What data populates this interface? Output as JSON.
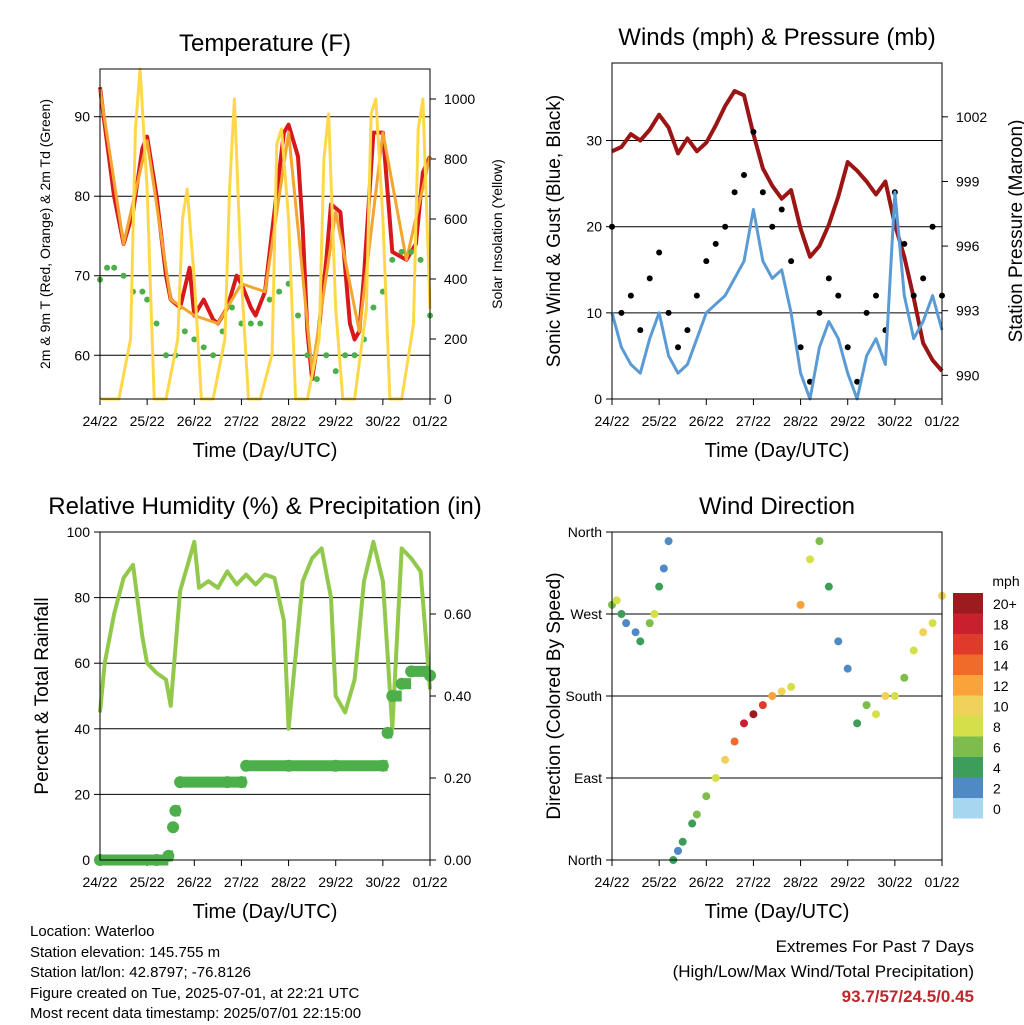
{
  "footer": {
    "location": "Location: Waterloo",
    "elevation": "Station elevation: 145.755 m",
    "latlon": "Station lat/lon: 42.8797; -76.8126",
    "created": "Figure created on Tue, 2025-07-01, at 22:21 UTC",
    "recent": "Most recent data timestamp: 2025/07/01 22:15:00"
  },
  "extremes": {
    "title": "Extremes For Past 7 Days",
    "subtitle": "(High/Low/Max Wind/Total Precipitation)",
    "values": "93.7/57/24.5/0.45",
    "color": "#c0272d"
  },
  "chart_data": [
    {
      "id": "temperature",
      "type": "line",
      "title": "Temperature (F)",
      "xlabel": "Time (Day/UTC)",
      "ylabel": "2m & 9m T (Red, Orange) & 2m Td (Green)",
      "ylabel_right": "Solar Insolation (Yellow)",
      "x_ticks": [
        "24/22",
        "25/22",
        "26/22",
        "27/22",
        "28/22",
        "29/22",
        "30/22",
        "01/22"
      ],
      "xlim": [
        0,
        7
      ],
      "ylim": [
        54.5,
        96
      ],
      "y_ticks": [
        60,
        70,
        80,
        90
      ],
      "ylim_right": [
        0,
        1100
      ],
      "y_ticks_right": [
        0,
        200,
        400,
        600,
        800,
        1000
      ],
      "series": [
        {
          "color": "#d7191c",
          "kind": "line",
          "x": [
            0,
            0.1,
            0.3,
            0.5,
            0.7,
            0.9,
            1.0,
            1.2,
            1.4,
            1.5,
            1.7,
            1.9,
            2.0,
            2.2,
            2.4,
            2.5,
            2.7,
            2.9,
            3.0,
            3.2,
            3.3,
            3.5,
            3.7,
            3.9,
            4.0,
            4.2,
            4.3,
            4.4,
            4.5,
            4.6,
            4.8,
            4.9,
            5.1,
            5.3,
            5.4,
            5.5,
            5.6,
            5.8,
            6.0,
            6.2,
            6.5,
            6.7,
            6.85,
            7.0
          ],
          "values": [
            93.7,
            89,
            80,
            74,
            78,
            86,
            87.5,
            80,
            70,
            67,
            66,
            71,
            65,
            67,
            64.5,
            64,
            66,
            70,
            69,
            66,
            65,
            68,
            78,
            88,
            89,
            85,
            76,
            63,
            57,
            61,
            72,
            79,
            78,
            64,
            62,
            63,
            70,
            88,
            88,
            73,
            72,
            74,
            83,
            85
          ]
        },
        {
          "color": "#f4a431",
          "kind": "line",
          "x": [
            0,
            0.5,
            1.0,
            1.5,
            2.0,
            2.5,
            3.0,
            3.5,
            4.0,
            4.5,
            5.0,
            5.5,
            6.0,
            6.5,
            7.0
          ],
          "values": [
            93.5,
            74,
            87,
            67,
            65,
            64,
            69,
            68,
            88,
            58,
            78,
            63,
            88,
            72,
            85
          ]
        },
        {
          "color": "#4daf4a",
          "kind": "dots",
          "x": [
            0,
            0.15,
            0.3,
            0.5,
            0.7,
            0.9,
            1.0,
            1.2,
            1.4,
            1.6,
            1.8,
            2.0,
            2.2,
            2.4,
            2.6,
            2.8,
            3.0,
            3.2,
            3.4,
            3.6,
            3.8,
            4.0,
            4.2,
            4.4,
            4.6,
            4.8,
            5.0,
            5.2,
            5.4,
            5.6,
            5.8,
            6.0,
            6.2,
            6.4,
            6.6,
            6.8,
            7.0
          ],
          "values": [
            69.5,
            71,
            71,
            70,
            68,
            68,
            67,
            64,
            60,
            60,
            63,
            62,
            61,
            60,
            63,
            66,
            64,
            64,
            64,
            67,
            68,
            69,
            65,
            60,
            57,
            60,
            58,
            60,
            60,
            62,
            66,
            68,
            72,
            73,
            73,
            72,
            65
          ]
        },
        {
          "color": "#ffd84a",
          "kind": "line",
          "axis": "right",
          "x": [
            0,
            0.15,
            0.4,
            0.65,
            0.75,
            0.85,
            1.0,
            1.15,
            1.4,
            1.65,
            1.75,
            1.85,
            2.0,
            2.15,
            2.4,
            2.65,
            2.75,
            2.85,
            3.0,
            3.15,
            3.4,
            3.65,
            3.75,
            3.85,
            4.0,
            4.15,
            4.4,
            4.65,
            4.75,
            4.85,
            5.0,
            5.15,
            5.4,
            5.65,
            5.75,
            5.85,
            6.0,
            6.15,
            6.4,
            6.65,
            6.75,
            6.85,
            7.0
          ],
          "values": [
            0,
            0,
            0,
            200,
            900,
            1100,
            700,
            0,
            0,
            200,
            600,
            700,
            400,
            0,
            0,
            200,
            700,
            1000,
            400,
            0,
            0,
            150,
            850,
            900,
            600,
            0,
            0,
            200,
            800,
            950,
            300,
            0,
            0,
            300,
            950,
            1000,
            600,
            0,
            0,
            250,
            900,
            1000,
            300
          ]
        }
      ]
    },
    {
      "id": "winds",
      "type": "line",
      "title": "Winds (mph) & Pressure (mb)",
      "xlabel": "Time (Day/UTC)",
      "ylabel": "Sonic Wind & Gust (Blue, Black)",
      "ylabel_right": "Station Pressure (Maroon)",
      "x_ticks": [
        "24/22",
        "25/22",
        "26/22",
        "27/22",
        "28/22",
        "29/22",
        "30/22",
        "01/22"
      ],
      "xlim": [
        0,
        7
      ],
      "ylim": [
        0,
        39
      ],
      "y_ticks": [
        0,
        10,
        20,
        30
      ],
      "ylim_right": [
        988.9,
        1004.5
      ],
      "y_ticks_right": [
        990,
        993,
        996,
        999,
        1002
      ],
      "series": [
        {
          "color": "#9b1515",
          "kind": "line",
          "axis": "right",
          "x": [
            0,
            0.2,
            0.4,
            0.6,
            0.8,
            1.0,
            1.2,
            1.4,
            1.6,
            1.8,
            2.0,
            2.2,
            2.4,
            2.6,
            2.8,
            3.0,
            3.2,
            3.4,
            3.6,
            3.8,
            4.0,
            4.2,
            4.4,
            4.6,
            4.8,
            5.0,
            5.2,
            5.4,
            5.6,
            5.8,
            6.0,
            6.2,
            6.4,
            6.6,
            6.8,
            7.0
          ],
          "values": [
            1000.4,
            1000.6,
            1001.2,
            1000.9,
            1001.4,
            1002.1,
            1001.5,
            1000.3,
            1001.0,
            1000.4,
            1000.8,
            1001.6,
            1002.5,
            1003.2,
            1003.0,
            1001.2,
            999.6,
            998.8,
            998.2,
            998.6,
            996.8,
            995.5,
            996.0,
            997.0,
            998.3,
            999.9,
            999.5,
            999.0,
            998.4,
            999.0,
            997.0,
            995.5,
            993.6,
            991.5,
            990.7,
            990.2
          ]
        },
        {
          "color": "#000000",
          "kind": "dots",
          "x": [
            0,
            0.2,
            0.4,
            0.6,
            0.8,
            1.0,
            1.2,
            1.4,
            1.6,
            1.8,
            2.0,
            2.2,
            2.4,
            2.6,
            2.8,
            3.0,
            3.2,
            3.4,
            3.6,
            3.8,
            4.0,
            4.2,
            4.4,
            4.6,
            4.8,
            5.0,
            5.2,
            5.4,
            5.6,
            5.8,
            6.0,
            6.2,
            6.4,
            6.6,
            6.8,
            7.0
          ],
          "values": [
            20,
            10,
            12,
            8,
            14,
            17,
            10,
            6,
            8,
            12,
            16,
            18,
            20,
            24,
            26,
            31,
            24,
            20,
            22,
            16,
            6,
            2,
            10,
            14,
            12,
            6,
            2,
            10,
            12,
            8,
            24,
            18,
            12,
            14,
            20,
            12
          ]
        },
        {
          "color": "#5b9bd5",
          "kind": "line",
          "x": [
            0,
            0.2,
            0.4,
            0.6,
            0.8,
            1.0,
            1.2,
            1.4,
            1.6,
            1.8,
            2.0,
            2.2,
            2.4,
            2.6,
            2.8,
            3.0,
            3.2,
            3.4,
            3.6,
            3.8,
            4.0,
            4.2,
            4.4,
            4.6,
            4.8,
            5.0,
            5.2,
            5.4,
            5.6,
            5.8,
            6.0,
            6.2,
            6.4,
            6.6,
            6.8,
            7.0
          ],
          "values": [
            10,
            6,
            4,
            3,
            7,
            10,
            5,
            3,
            4,
            7,
            10,
            11,
            12,
            14,
            16,
            22,
            16,
            14,
            15,
            10,
            3,
            0,
            6,
            9,
            7,
            3,
            0,
            5,
            7,
            4,
            24,
            12,
            7,
            9,
            12,
            8
          ]
        }
      ]
    },
    {
      "id": "humidity",
      "type": "line",
      "title": "Relative Humidity (%) & Precipitation (in)",
      "xlabel": "Time (Day/UTC)",
      "ylabel": "Percent & Total Rainfall",
      "x_ticks": [
        "24/22",
        "25/22",
        "26/22",
        "27/22",
        "28/22",
        "29/22",
        "30/22",
        "01/22"
      ],
      "xlim": [
        0,
        7
      ],
      "ylim": [
        0,
        100
      ],
      "y_ticks": [
        0,
        20,
        40,
        60,
        80,
        100
      ],
      "ylim_right": [
        0,
        0.8
      ],
      "y_ticks_right": [
        "0.00",
        "0.20",
        "0.40",
        "0.60"
      ],
      "series": [
        {
          "color": "#92c84c",
          "kind": "line",
          "x": [
            0,
            0.1,
            0.3,
            0.5,
            0.7,
            0.9,
            1.0,
            1.2,
            1.4,
            1.5,
            1.7,
            1.9,
            2.0,
            2.1,
            2.3,
            2.5,
            2.7,
            2.9,
            3.1,
            3.3,
            3.5,
            3.7,
            3.9,
            4.0,
            4.2,
            4.3,
            4.5,
            4.7,
            4.9,
            5.0,
            5.2,
            5.4,
            5.6,
            5.8,
            6.0,
            6.2,
            6.4,
            6.6,
            6.8,
            7.0
          ],
          "values": [
            45,
            60,
            75,
            86,
            90,
            68,
            60,
            57,
            55,
            47,
            82,
            92,
            97,
            83,
            85,
            83,
            88,
            84,
            87,
            84,
            87,
            86,
            73,
            40,
            70,
            85,
            92,
            95,
            80,
            50,
            45,
            55,
            85,
            97,
            85,
            40,
            95,
            92,
            88,
            52
          ]
        },
        {
          "color": "#4daf4a",
          "kind": "steps",
          "axis": "right",
          "x": [
            0,
            1.2,
            1.45,
            1.55,
            1.6,
            1.7,
            2.7,
            3.0,
            3.1,
            4.0,
            5.0,
            6.0,
            6.1,
            6.2,
            6.4,
            6.6,
            7.0
          ],
          "values": [
            0,
            0,
            0.01,
            0.08,
            0.12,
            0.19,
            0.19,
            0.19,
            0.23,
            0.23,
            0.23,
            0.23,
            0.31,
            0.4,
            0.43,
            0.46,
            0.45
          ]
        }
      ]
    },
    {
      "id": "wind_direction",
      "type": "scatter",
      "title": "Wind Direction",
      "xlabel": "Time (Day/UTC)",
      "ylabel": "Direction (Colored By Speed)",
      "x_ticks": [
        "24/22",
        "25/22",
        "26/22",
        "27/22",
        "28/22",
        "29/22",
        "30/22",
        "01/22"
      ],
      "xlim": [
        0,
        7
      ],
      "ylim": [
        0,
        360
      ],
      "y_ticks": [
        "North",
        "East",
        "South",
        "West",
        "North"
      ],
      "legend": {
        "title": "mph",
        "labels": [
          "20+",
          "18",
          "16",
          "14",
          "12",
          "10",
          "8",
          "6",
          "4",
          "2",
          "0"
        ],
        "colors": [
          "#9b1b1e",
          "#c8202d",
          "#e03b2a",
          "#f06a29",
          "#f9a33a",
          "#f0d15a",
          "#d5df4a",
          "#7dbd4d",
          "#3d9e5b",
          "#4f8ac4",
          "#a7d7f0"
        ]
      },
      "x": [
        0,
        0.1,
        0.2,
        0.3,
        0.5,
        0.6,
        0.8,
        0.9,
        1.0,
        1.1,
        1.2,
        1.3,
        1.4,
        1.5,
        1.7,
        1.8,
        2.0,
        2.2,
        2.4,
        2.6,
        2.8,
        3.0,
        3.2,
        3.4,
        3.6,
        3.8,
        4.0,
        4.2,
        4.4,
        4.6,
        4.8,
        5.0,
        5.2,
        5.4,
        5.6,
        5.8,
        6.0,
        6.2,
        6.4,
        6.6,
        6.8,
        7.0
      ],
      "values": [
        280,
        285,
        270,
        260,
        250,
        240,
        260,
        270,
        300,
        320,
        350,
        0,
        10,
        20,
        40,
        50,
        70,
        90,
        110,
        130,
        150,
        160,
        170,
        180,
        185,
        190,
        280,
        330,
        350,
        300,
        240,
        210,
        150,
        170,
        160,
        180,
        180,
        200,
        230,
        250,
        260,
        290
      ],
      "speeds": [
        6,
        8,
        4,
        3,
        2,
        4,
        6,
        8,
        5,
        3,
        2,
        4,
        3,
        4,
        5,
        6,
        7,
        8,
        10,
        14,
        18,
        20,
        16,
        12,
        10,
        8,
        12,
        8,
        6,
        4,
        3,
        2,
        5,
        6,
        8,
        10,
        8,
        6,
        8,
        10,
        8,
        10
      ]
    }
  ]
}
